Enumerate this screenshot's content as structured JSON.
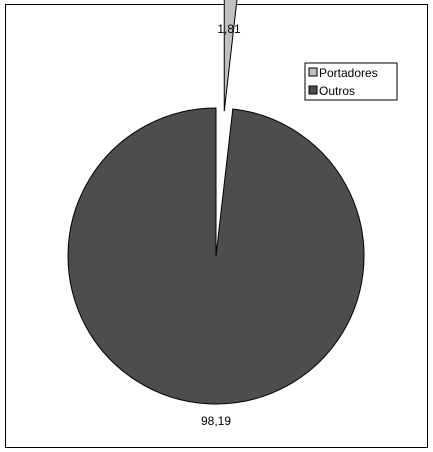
{
  "chart_data": {
    "type": "pie",
    "slices": [
      {
        "name": "Portadores",
        "value": 1.81,
        "label": "1,81",
        "color": "#c0c0c0",
        "exploded": true
      },
      {
        "name": "Outros",
        "value": 98.19,
        "label": "98,19",
        "color": "#4d4d4d",
        "exploded": false
      }
    ],
    "legend": {
      "placement": "top-right",
      "entries": [
        "Portadores",
        "Outros"
      ]
    }
  }
}
